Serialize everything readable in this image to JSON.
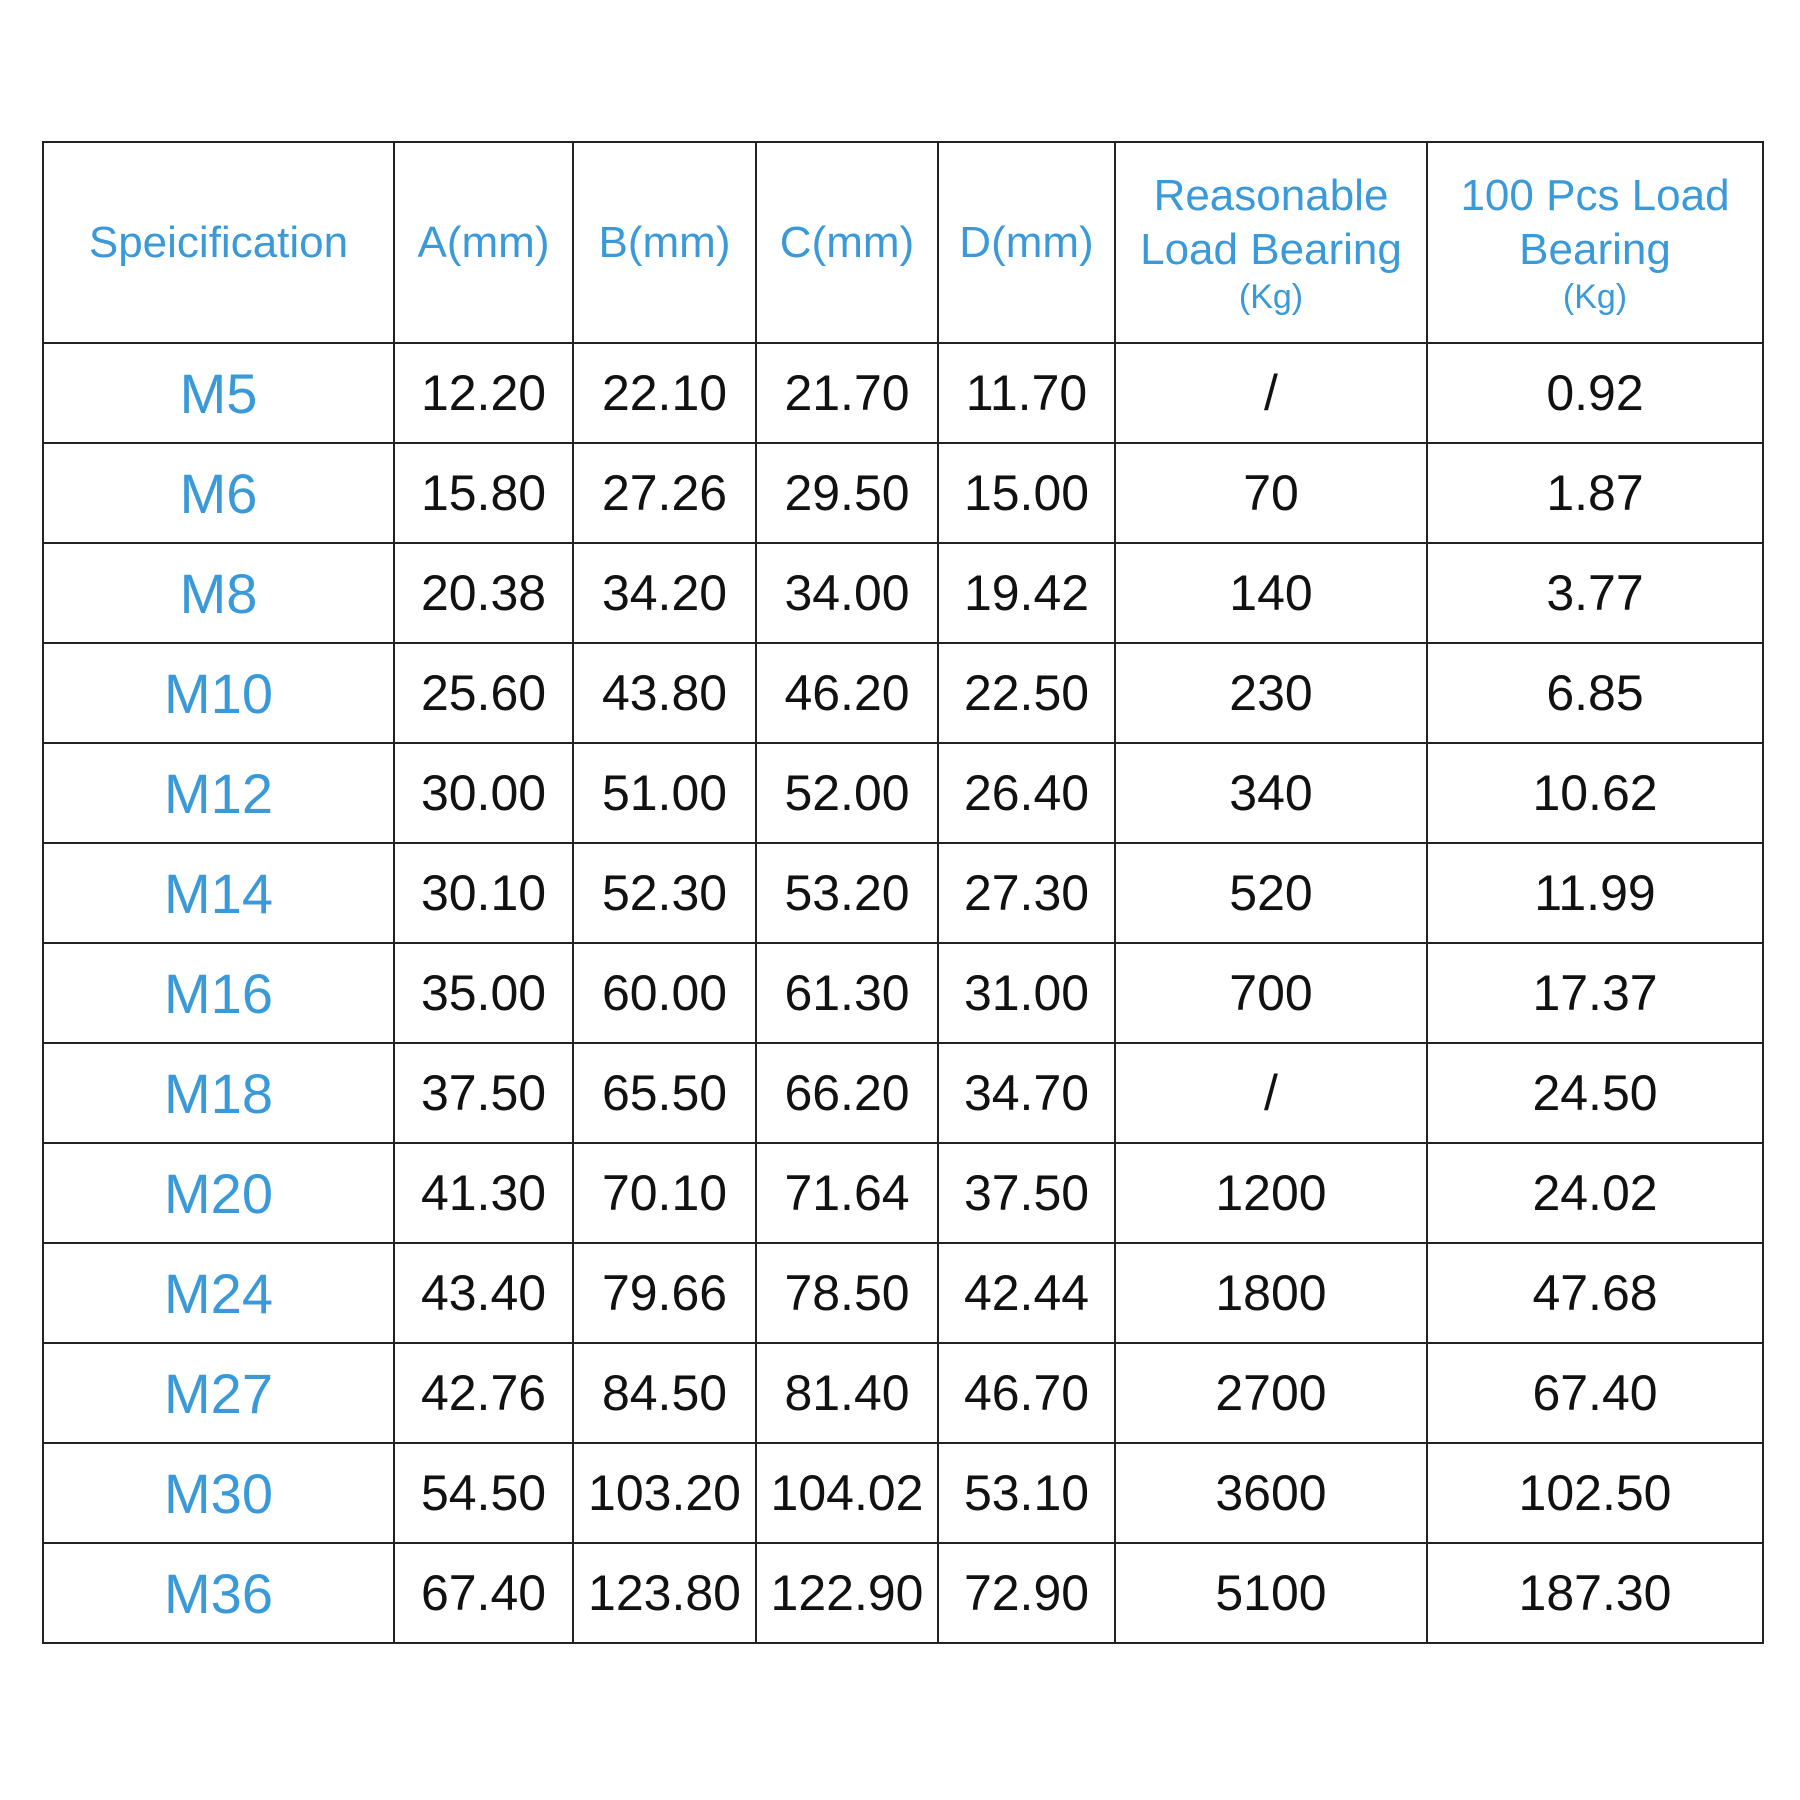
{
  "colors": {
    "header": "#3a9ad9",
    "spec": "#3a9ad9",
    "text": "#111111",
    "border": "#222222"
  },
  "headers": [
    {
      "label": "Speicification",
      "unit": ""
    },
    {
      "label": "A(mm)",
      "unit": ""
    },
    {
      "label": "B(mm)",
      "unit": ""
    },
    {
      "label": "C(mm)",
      "unit": ""
    },
    {
      "label": "D(mm)",
      "unit": ""
    },
    {
      "label": "Reasonable Load Bearing",
      "unit": "(Kg)"
    },
    {
      "label": "100 Pcs Load Bearing",
      "unit": "(Kg)"
    }
  ],
  "rows": [
    [
      "M5",
      "12.20",
      "22.10",
      "21.70",
      "11.70",
      "/",
      "0.92"
    ],
    [
      "M6",
      "15.80",
      "27.26",
      "29.50",
      "15.00",
      "70",
      "1.87"
    ],
    [
      "M8",
      "20.38",
      "34.20",
      "34.00",
      "19.42",
      "140",
      "3.77"
    ],
    [
      "M10",
      "25.60",
      "43.80",
      "46.20",
      "22.50",
      "230",
      "6.85"
    ],
    [
      "M12",
      "30.00",
      "51.00",
      "52.00",
      "26.40",
      "340",
      "10.62"
    ],
    [
      "M14",
      "30.10",
      "52.30",
      "53.20",
      "27.30",
      "520",
      "11.99"
    ],
    [
      "M16",
      "35.00",
      "60.00",
      "61.30",
      "31.00",
      "700",
      "17.37"
    ],
    [
      "M18",
      "37.50",
      "65.50",
      "66.20",
      "34.70",
      "/",
      "24.50"
    ],
    [
      "M20",
      "41.30",
      "70.10",
      "71.64",
      "37.50",
      "1200",
      "24.02"
    ],
    [
      "M24",
      "43.40",
      "79.66",
      "78.50",
      "42.44",
      "1800",
      "47.68"
    ],
    [
      "M27",
      "42.76",
      "84.50",
      "81.40",
      "46.70",
      "2700",
      "67.40"
    ],
    [
      "M30",
      "54.50",
      "103.20",
      "104.02",
      "53.10",
      "3600",
      "102.50"
    ],
    [
      "M36",
      "67.40",
      "123.80",
      "122.90",
      "72.90",
      "5100",
      "187.30"
    ]
  ]
}
